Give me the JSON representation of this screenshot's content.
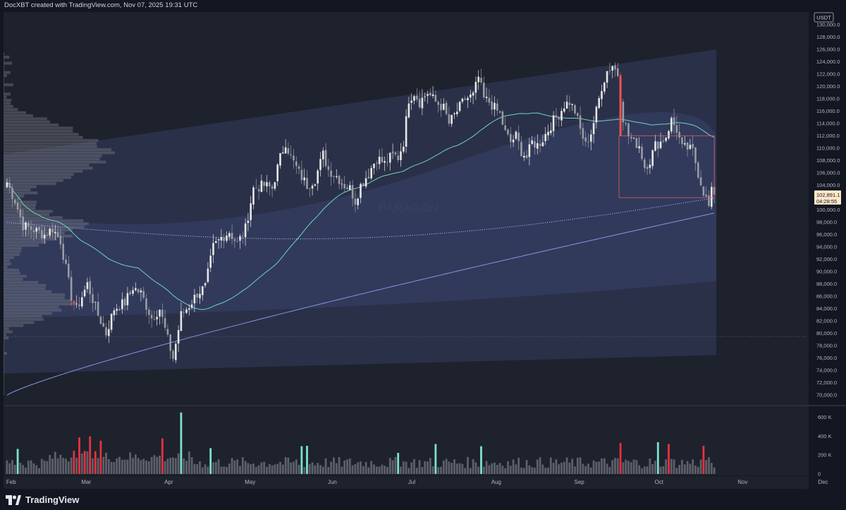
{
  "caption": "DocXBT created with TradingView.com, Nov 07, 2025 19:31 UTC",
  "currency_badge": "USDT",
  "watermark": "PARAGON",
  "branding": "TradingView",
  "price_badge": {
    "price": "102,891.1",
    "countdown": "04:28:55"
  },
  "colors": {
    "background": "#131722",
    "pane": "#1e222d",
    "bull": "#e6e6e6",
    "bear": "#ef5350",
    "vol_bull_highlight": "#7fe0d2",
    "vol_bear_highlight": "#e5323e",
    "vol_normal": "#5d606b",
    "sma_teal": "#6fd3c2",
    "sma_blue": "#8a93e8",
    "dotted_line": "#a7aeff",
    "band": "#313a5a"
  },
  "chart_data": {
    "type": "candlestick",
    "symbol_currency": "USDT",
    "period": "2025-02 to 2025-11-07 (daily)",
    "price_axis": {
      "ylim": [
        69000,
        131500
      ],
      "ticks": [
        "130,000.0",
        "128,000.0",
        "126,000.0",
        "124,000.0",
        "122,000.0",
        "120,000.0",
        "118,000.0",
        "116,000.0",
        "114,000.0",
        "112,000.0",
        "110,000.0",
        "108,000.0",
        "106,000.0",
        "104,000.0",
        "100,000.0",
        "98,000.0",
        "96,000.0",
        "94,000.0",
        "92,000.0",
        "90,000.0",
        "88,000.0",
        "86,000.0",
        "84,000.0",
        "82,000.0",
        "80,000.0",
        "78,000.0",
        "76,000.0",
        "74,000.0",
        "72,000.0",
        "70,000.0"
      ]
    },
    "volume_axis": {
      "ylim": [
        0,
        700
      ],
      "ticks": [
        "600 K",
        "400 K",
        "200 K",
        "0"
      ]
    },
    "x_axis": {
      "months": [
        "Feb",
        "Mar",
        "Apr",
        "May",
        "Jun",
        "Jul",
        "Aug",
        "Sep",
        "Oct",
        "Nov",
        "Dec"
      ]
    },
    "price_anchors": [
      [
        0,
        104500
      ],
      [
        3,
        101500
      ],
      [
        6,
        97500
      ],
      [
        10,
        96800
      ],
      [
        14,
        96000
      ],
      [
        17,
        97000
      ],
      [
        20,
        95000
      ],
      [
        24,
        86000
      ],
      [
        26,
        84000
      ],
      [
        30,
        88000
      ],
      [
        34,
        83000
      ],
      [
        37,
        80000
      ],
      [
        40,
        84000
      ],
      [
        44,
        85000
      ],
      [
        47,
        87500
      ],
      [
        50,
        86500
      ],
      [
        54,
        82500
      ],
      [
        57,
        84000
      ],
      [
        60,
        79000
      ],
      [
        62,
        76000
      ],
      [
        65,
        83000
      ],
      [
        68,
        84500
      ],
      [
        71,
        86500
      ],
      [
        74,
        87500
      ],
      [
        77,
        94000
      ],
      [
        80,
        95500
      ],
      [
        83,
        96500
      ],
      [
        86,
        94500
      ],
      [
        89,
        97000
      ],
      [
        92,
        103500
      ],
      [
        96,
        104000
      ],
      [
        99,
        103500
      ],
      [
        102,
        108500
      ],
      [
        104,
        111000
      ],
      [
        106,
        108500
      ],
      [
        109,
        106000
      ],
      [
        112,
        104000
      ],
      [
        115,
        105000
      ],
      [
        118,
        109000
      ],
      [
        120,
        106500
      ],
      [
        123,
        105500
      ],
      [
        126,
        104000
      ],
      [
        128,
        103500
      ],
      [
        130,
        101500
      ],
      [
        132,
        104000
      ],
      [
        135,
        106000
      ],
      [
        138,
        108500
      ],
      [
        141,
        107500
      ],
      [
        144,
        109000
      ],
      [
        146,
        108500
      ],
      [
        148,
        111000
      ],
      [
        150,
        118000
      ],
      [
        152,
        119000
      ],
      [
        154,
        117500
      ],
      [
        157,
        119000
      ],
      [
        160,
        117500
      ],
      [
        163,
        116500
      ],
      [
        165,
        114000
      ],
      [
        168,
        116000
      ],
      [
        171,
        118000
      ],
      [
        174,
        118500
      ],
      [
        176,
        121500
      ],
      [
        178,
        118000
      ],
      [
        180,
        117500
      ],
      [
        182,
        116500
      ],
      [
        184,
        115500
      ],
      [
        186,
        112500
      ],
      [
        188,
        111000
      ],
      [
        190,
        112000
      ],
      [
        192,
        109500
      ],
      [
        194,
        108500
      ],
      [
        196,
        111000
      ],
      [
        198,
        110500
      ],
      [
        200,
        111500
      ],
      [
        202,
        113000
      ],
      [
        204,
        114500
      ],
      [
        206,
        115500
      ],
      [
        208,
        117000
      ],
      [
        210,
        117500
      ],
      [
        212,
        116000
      ],
      [
        214,
        113000
      ],
      [
        216,
        110500
      ],
      [
        218,
        112500
      ],
      [
        220,
        116000
      ],
      [
        222,
        120000
      ],
      [
        224,
        122500
      ],
      [
        226,
        123500
      ],
      [
        228,
        122000
      ],
      [
        230,
        115000
      ],
      [
        232,
        112000
      ],
      [
        234,
        111000
      ],
      [
        236,
        110500
      ],
      [
        238,
        107000
      ],
      [
        240,
        108000
      ],
      [
        242,
        110500
      ],
      [
        244,
        111000
      ],
      [
        246,
        112000
      ],
      [
        248,
        114500
      ],
      [
        250,
        113000
      ],
      [
        252,
        110000
      ],
      [
        254,
        110000
      ],
      [
        256,
        109500
      ],
      [
        258,
        106000
      ],
      [
        260,
        103000
      ],
      [
        262,
        100500
      ],
      [
        263,
        102900
      ]
    ],
    "volume_highlights": {
      "bull": [
        4,
        65,
        76,
        110,
        112,
        146,
        160,
        177,
        243
      ],
      "bear": [
        25,
        27,
        29,
        31,
        33,
        35,
        58,
        229,
        247,
        260
      ]
    },
    "annotation_box": {
      "top": 112000,
      "bottom": 102000,
      "left_bar": 229,
      "right_bar": 264
    },
    "low_line_level": 79500,
    "indicators": [
      "SMA teal",
      "SMA blue",
      "dotted MA",
      "volume profile",
      "regression band"
    ],
    "grid": false
  }
}
